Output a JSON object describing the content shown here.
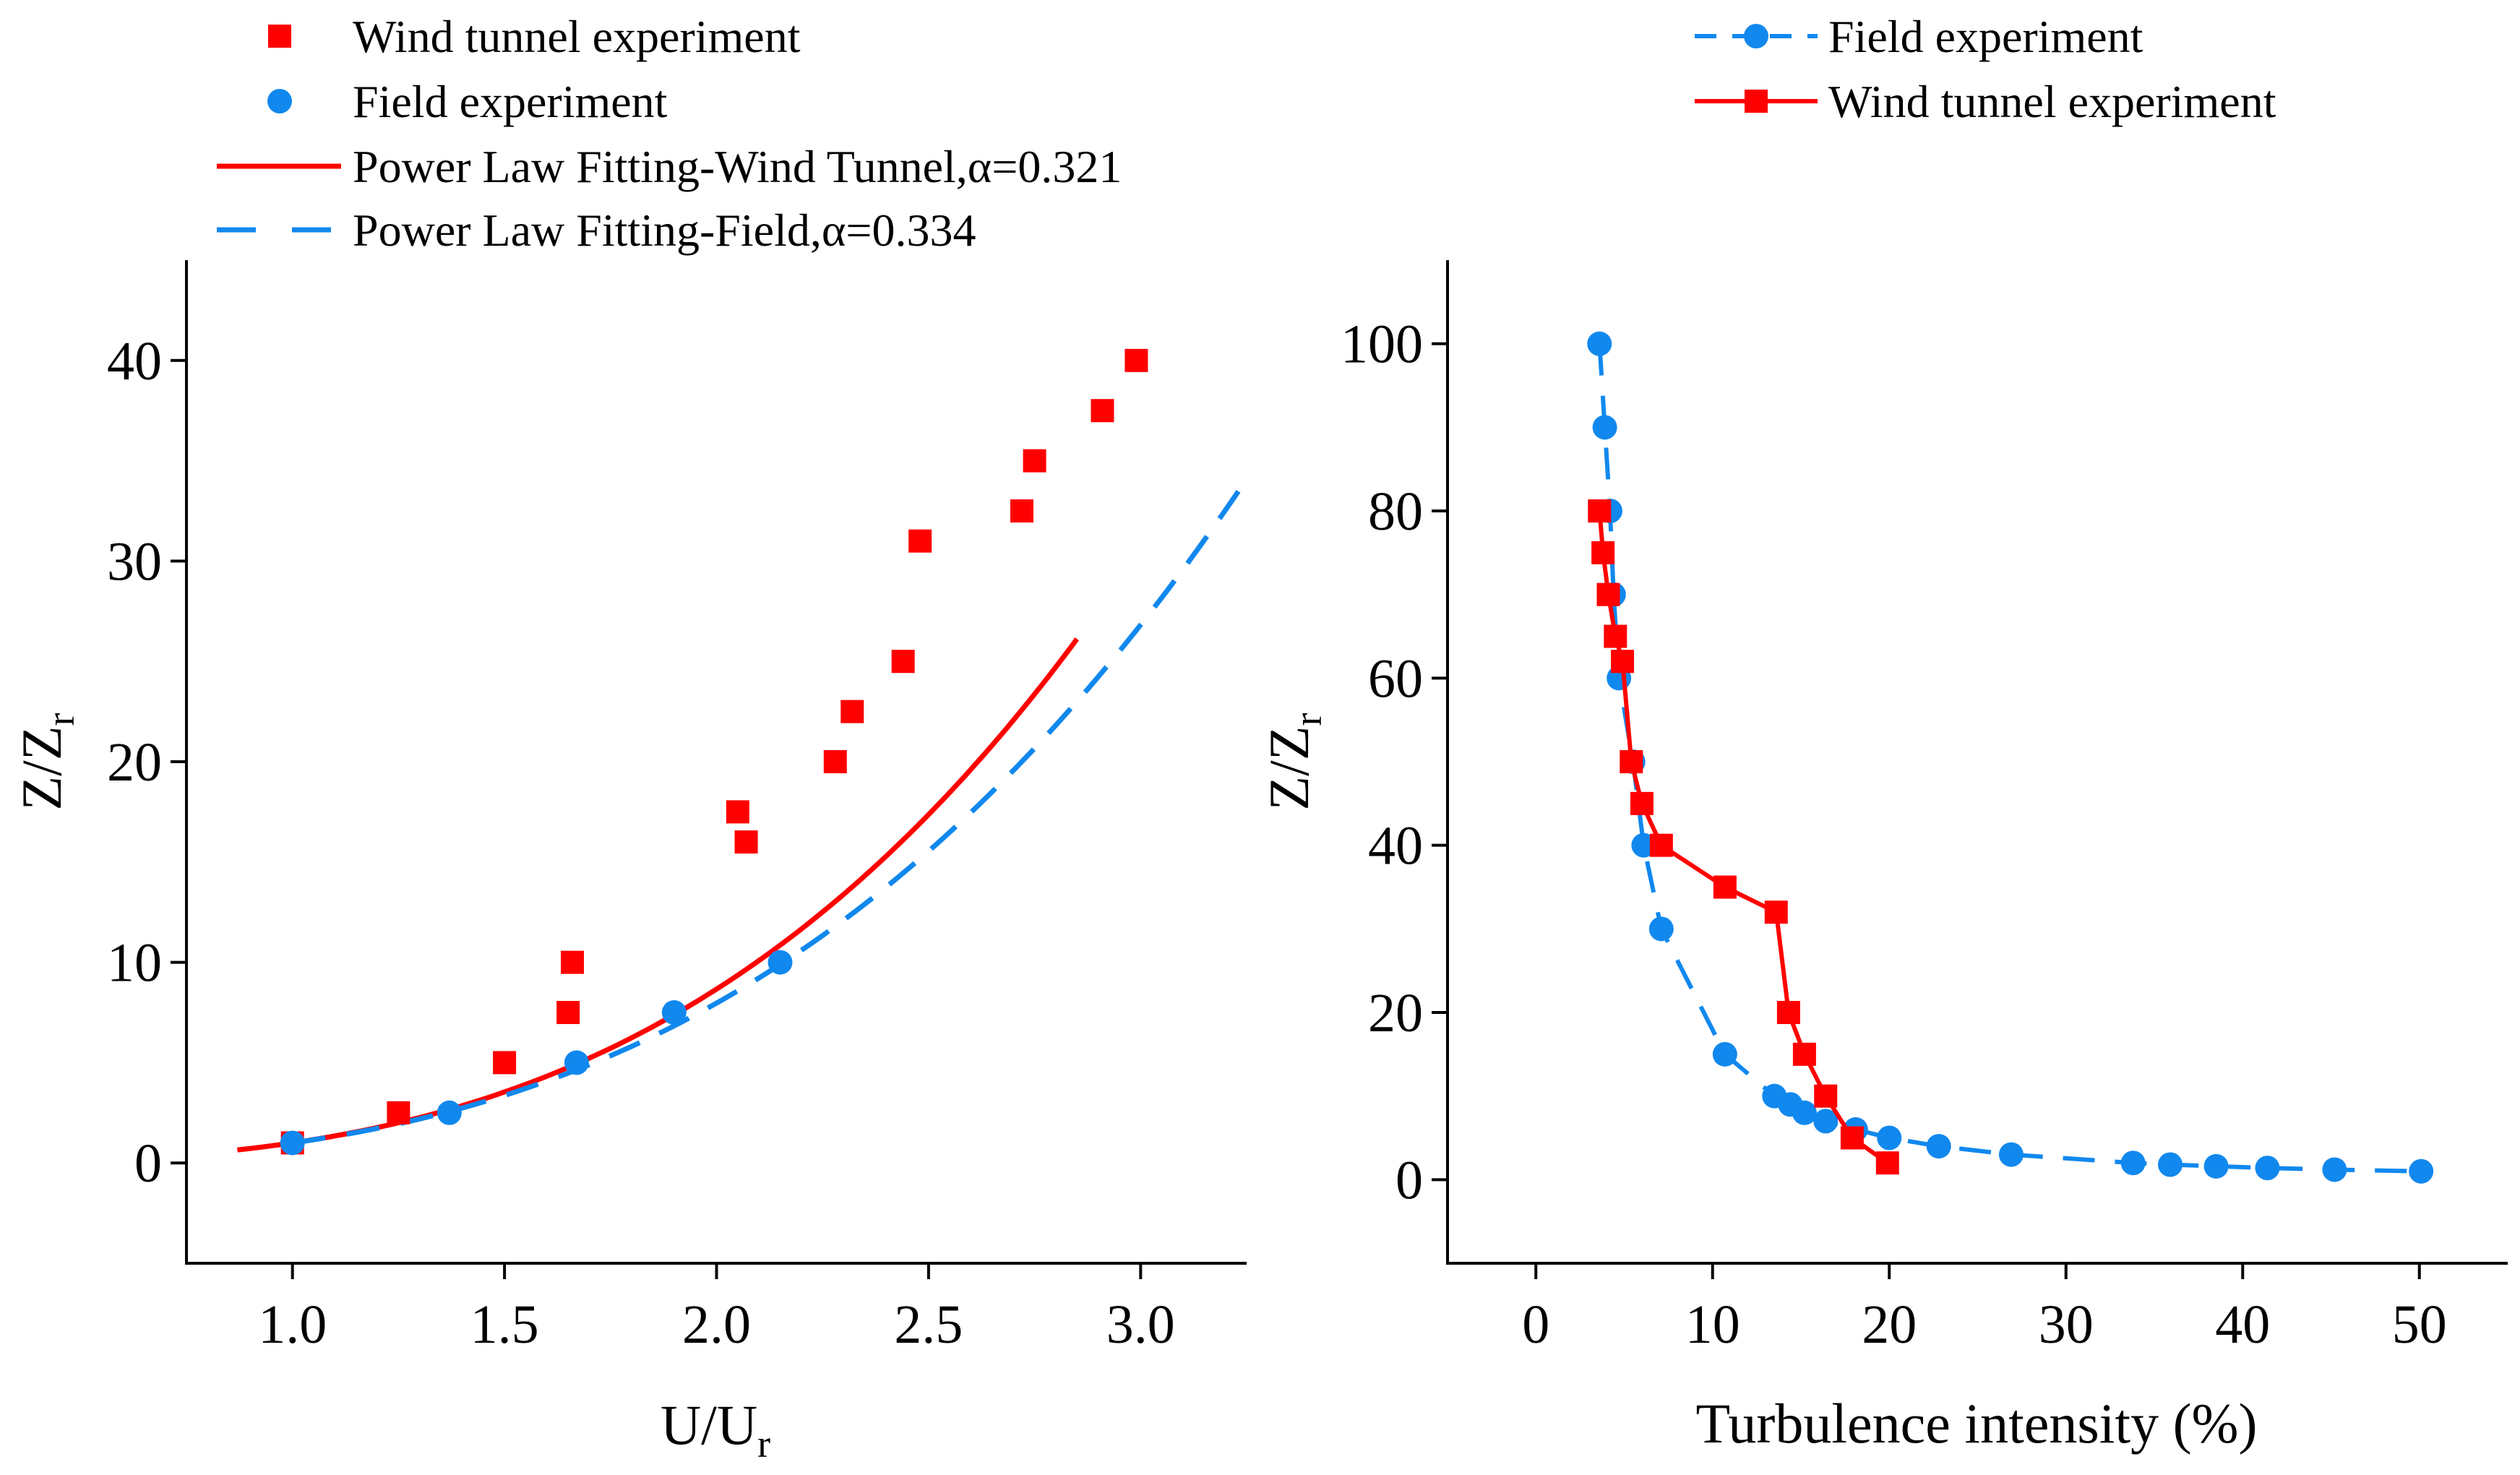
{
  "colors": {
    "wind_tunnel": "#ff0000",
    "field": "#1188ee",
    "axis": "#000000"
  },
  "chart_data": [
    {
      "type": "scatter",
      "id": "velocity-profile",
      "xlabel": "U/U",
      "xlabel_sub": "r",
      "ylabel": "Z/Z",
      "ylabel_sub": "r",
      "xlim": [
        0.75,
        3.25
      ],
      "ylim": [
        -5,
        45
      ],
      "xticks": [
        1.0,
        1.5,
        2.0,
        2.5,
        3.0
      ],
      "xtick_labels": [
        "1.0",
        "1.5",
        "2.0",
        "2.5",
        "3.0"
      ],
      "yticks": [
        0,
        10,
        20,
        30,
        40
      ],
      "ytick_labels": [
        "0",
        "10",
        "20",
        "30",
        "40"
      ],
      "legend": [
        {
          "label": "Wind tunnel experiment",
          "kind": "square",
          "series": "wind_tunnel"
        },
        {
          "label": "Field experiment",
          "kind": "circle",
          "series": "field"
        },
        {
          "label": "Power Law Fitting-Wind Tunnel,α=0.321",
          "kind": "solid",
          "series": "wind_tunnel"
        },
        {
          "label": "Power Law Fitting-Field,α=0.334",
          "kind": "dashed",
          "series": "field"
        }
      ],
      "series": [
        {
          "name": "Wind tunnel experiment",
          "color_key": "wind_tunnel",
          "marker": "square",
          "x": [
            1.0,
            1.25,
            1.5,
            1.65,
            1.66,
            2.05,
            2.07,
            2.28,
            2.32,
            2.44,
            2.48,
            2.72,
            2.75,
            2.91,
            2.99
          ],
          "y": [
            1,
            2.5,
            5,
            7.5,
            10,
            17.5,
            16,
            20,
            22.5,
            25,
            31,
            32.5,
            35,
            37.5,
            40
          ]
        },
        {
          "name": "Field experiment",
          "color_key": "field",
          "marker": "circle",
          "x": [
            1.0,
            1.37,
            1.67,
            1.9,
            2.15
          ],
          "y": [
            1,
            2.5,
            5,
            7.5,
            10
          ]
        }
      ],
      "fits": [
        {
          "name": "Power Law Fitting-Wind Tunnel,α=0.321",
          "color_key": "wind_tunnel",
          "style": "solid",
          "alpha": 0.321,
          "x_range": [
            0.87,
            2.85
          ]
        },
        {
          "name": "Power Law Fitting-Field,α=0.334",
          "color_key": "field",
          "style": "dashed",
          "alpha": 0.334,
          "x_range": [
            1.0,
            3.25
          ]
        }
      ]
    },
    {
      "type": "line",
      "id": "turbulence-profile",
      "xlabel": "Turbulence intensity (%)",
      "ylabel": "Z/Z",
      "ylabel_sub": "r",
      "xlim": [
        -5,
        55
      ],
      "ylim": [
        -10,
        110
      ],
      "xticks": [
        0,
        10,
        20,
        30,
        40,
        50
      ],
      "xtick_labels": [
        "0",
        "10",
        "20",
        "30",
        "40",
        "50"
      ],
      "yticks": [
        0,
        20,
        40,
        60,
        80,
        100
      ],
      "ytick_labels": [
        "0",
        "20",
        "40",
        "60",
        "80",
        "100"
      ],
      "legend": [
        {
          "label": "Field experiment",
          "kind": "dashed-circle",
          "series": "field"
        },
        {
          "label": "Wind tunnel experiment",
          "kind": "solid-square",
          "series": "wind_tunnel"
        }
      ],
      "series": [
        {
          "name": "Field experiment",
          "color_key": "field",
          "marker": "circle",
          "line": "dashed",
          "x": [
            3.6,
            3.9,
            4.2,
            4.4,
            4.7,
            5.5,
            6.1,
            7.1,
            10.7,
            13.5,
            14.4,
            15.2,
            16.4,
            18.1,
            20.0,
            22.8,
            26.9,
            33.8,
            35.9,
            38.5,
            41.4,
            45.2,
            50.1
          ],
          "y": [
            100,
            90,
            80,
            70,
            60,
            50,
            40,
            30,
            15,
            10,
            9,
            8,
            7,
            6,
            5,
            4,
            3,
            2,
            1.8,
            1.6,
            1.4,
            1.2,
            1.0
          ]
        },
        {
          "name": "Wind tunnel experiment",
          "color_key": "wind_tunnel",
          "marker": "square",
          "line": "solid",
          "x": [
            3.6,
            3.8,
            4.1,
            4.5,
            4.9,
            5.4,
            6.0,
            7.1,
            10.7,
            13.6,
            14.3,
            15.2,
            16.4,
            17.9,
            19.9
          ],
          "y": [
            80,
            75,
            70,
            65,
            62,
            50,
            45,
            40,
            35,
            32,
            20,
            15,
            10,
            5,
            2
          ]
        }
      ]
    }
  ]
}
